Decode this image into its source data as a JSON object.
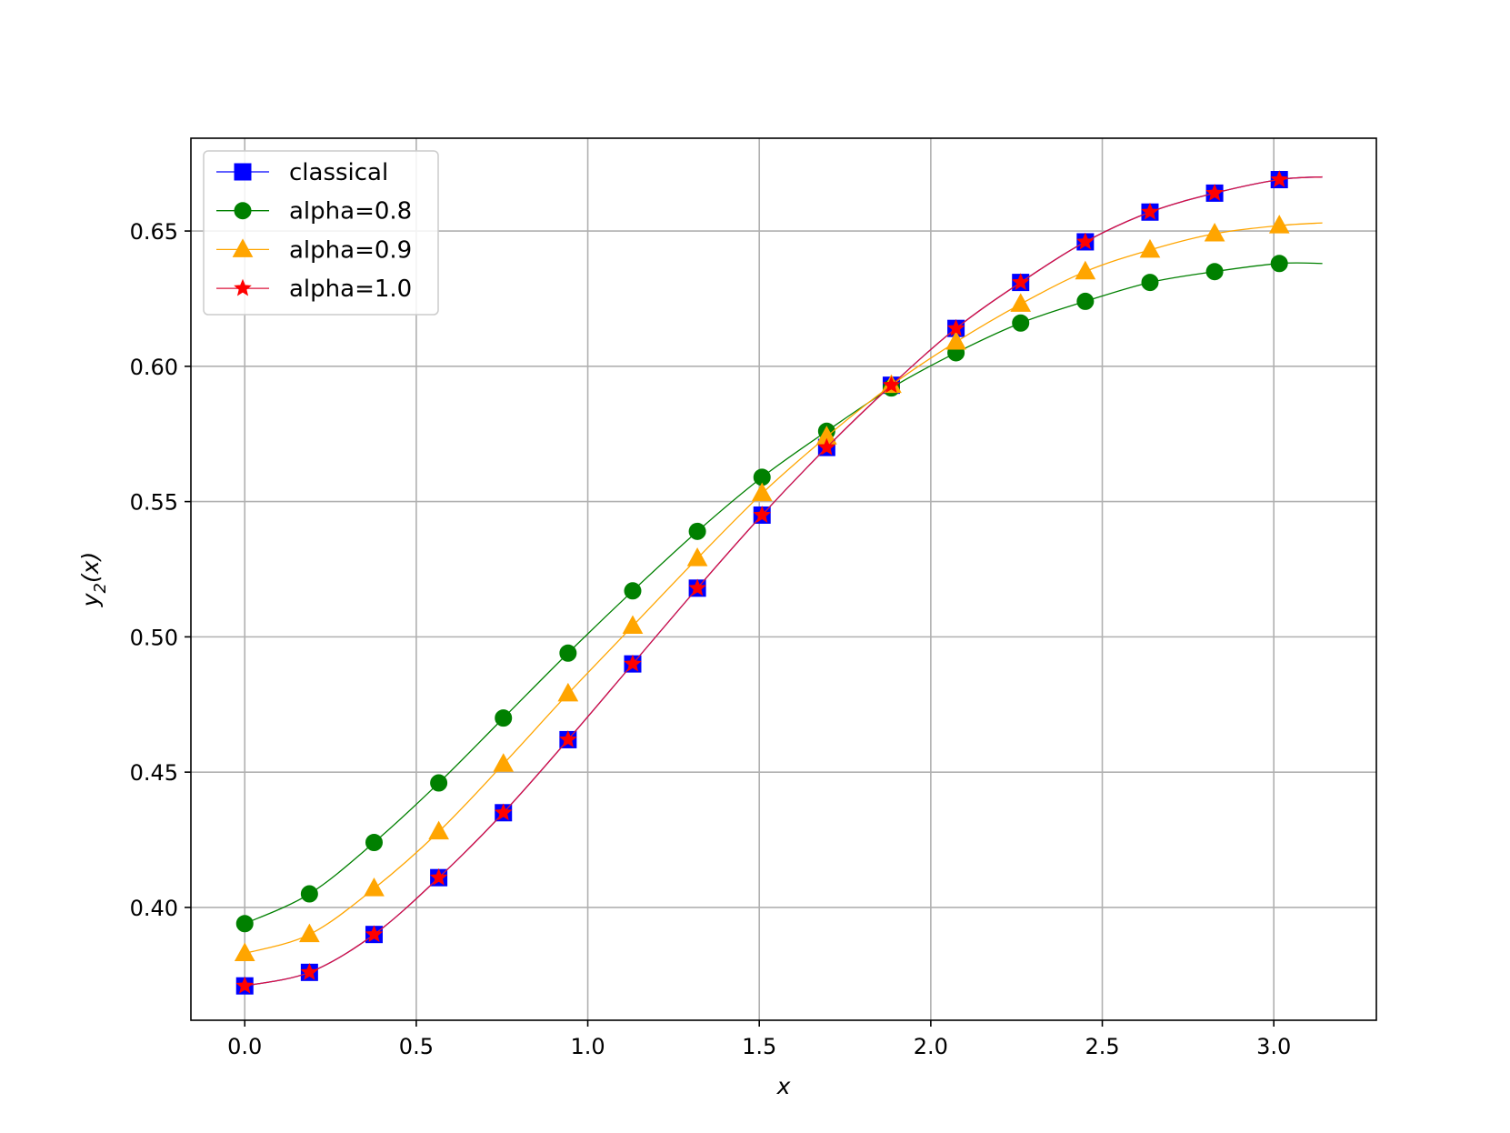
{
  "chart_data": {
    "type": "line",
    "xlabel": "x",
    "ylabel": "y2(x)",
    "ylabel_main": "y",
    "ylabel_sub": "2",
    "ylabel_rest": "(x)",
    "xlim": [
      -0.157,
      3.299
    ],
    "ylim": [
      0.3583,
      0.6843
    ],
    "xticks": [
      0.0,
      0.5,
      1.0,
      1.5,
      2.0,
      2.5,
      3.0
    ],
    "xtick_labels": [
      "0.0",
      "0.5",
      "1.0",
      "1.5",
      "2.0",
      "2.5",
      "3.0"
    ],
    "yticks": [
      0.4,
      0.45,
      0.5,
      0.55,
      0.6,
      0.65
    ],
    "ytick_labels": [
      "0.40",
      "0.45",
      "0.50",
      "0.55",
      "0.60",
      "0.65"
    ],
    "grid": true,
    "legend_position": "upper-left",
    "x_end": 3.1416,
    "series": [
      {
        "name": "classical",
        "color": "#0000ff",
        "marker": "square",
        "line_color": "#0000ff",
        "x": [
          0.0,
          0.1885,
          0.377,
          0.5655,
          0.754,
          0.9425,
          1.131,
          1.3195,
          1.508,
          1.6965,
          1.885,
          2.0735,
          2.262,
          2.4505,
          2.639,
          2.8275,
          3.016
        ],
        "y": [
          0.371,
          0.376,
          0.39,
          0.411,
          0.435,
          0.462,
          0.49,
          0.518,
          0.545,
          0.57,
          0.593,
          0.614,
          0.631,
          0.646,
          0.657,
          0.664,
          0.669
        ],
        "end_value": 0.67
      },
      {
        "name": "alpha=0.8",
        "color": "#008000",
        "marker": "circle",
        "line_color": "#008000",
        "x": [
          0.0,
          0.1885,
          0.377,
          0.5655,
          0.754,
          0.9425,
          1.131,
          1.3195,
          1.508,
          1.6965,
          1.885,
          2.0735,
          2.262,
          2.4505,
          2.639,
          2.8275,
          3.016
        ],
        "y": [
          0.394,
          0.405,
          0.424,
          0.446,
          0.47,
          0.494,
          0.517,
          0.539,
          0.559,
          0.576,
          0.592,
          0.605,
          0.616,
          0.624,
          0.631,
          0.635,
          0.638
        ],
        "end_value": 0.638
      },
      {
        "name": "alpha=0.9",
        "color": "#ffa500",
        "marker": "triangle",
        "line_color": "#ffa500",
        "x": [
          0.0,
          0.1885,
          0.377,
          0.5655,
          0.754,
          0.9425,
          1.131,
          1.3195,
          1.508,
          1.6965,
          1.885,
          2.0735,
          2.262,
          2.4505,
          2.639,
          2.8275,
          3.016
        ],
        "y": [
          0.383,
          0.39,
          0.407,
          0.428,
          0.453,
          0.479,
          0.504,
          0.529,
          0.553,
          0.574,
          0.593,
          0.609,
          0.623,
          0.635,
          0.643,
          0.649,
          0.652
        ],
        "end_value": 0.653
      },
      {
        "name": "alpha=1.0",
        "color": "#ff0000",
        "marker": "star",
        "line_color": "#dc143c",
        "x": [
          0.0,
          0.1885,
          0.377,
          0.5655,
          0.754,
          0.9425,
          1.131,
          1.3195,
          1.508,
          1.6965,
          1.885,
          2.0735,
          2.262,
          2.4505,
          2.639,
          2.8275,
          3.016
        ],
        "y": [
          0.371,
          0.376,
          0.39,
          0.411,
          0.435,
          0.462,
          0.49,
          0.518,
          0.545,
          0.57,
          0.593,
          0.614,
          0.631,
          0.646,
          0.657,
          0.664,
          0.669
        ],
        "end_value": 0.67
      }
    ]
  }
}
